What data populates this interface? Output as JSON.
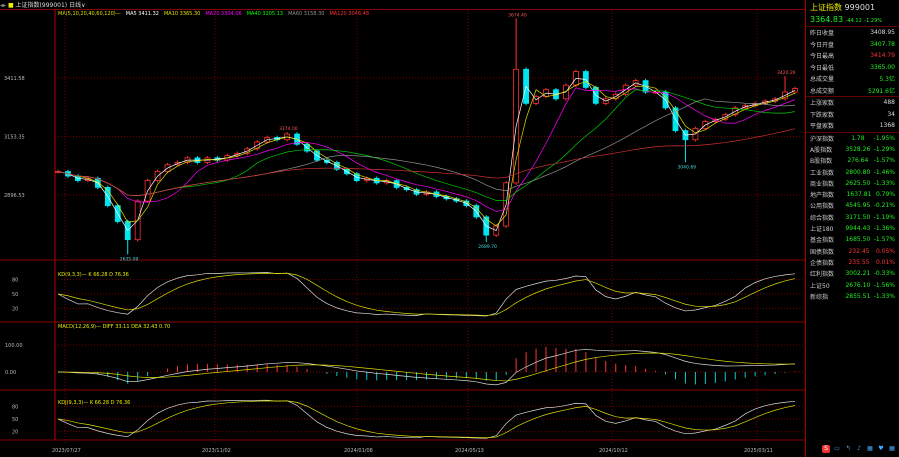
{
  "topbar": {
    "title": "上证指数(999001)",
    "period": "日线"
  },
  "legend": [
    {
      "text": "MA(5,10,20,40,60,120)—",
      "color": "#e0e000"
    },
    {
      "text": "MA5 3411.32",
      "color": "#ffffff"
    },
    {
      "text": "MA10 3365.30",
      "color": "#e0e000"
    },
    {
      "text": "MA20 3304.06",
      "color": "#ff00ff"
    },
    {
      "text": "MA40 3205.13",
      "color": "#00ff00"
    },
    {
      "text": "MA60 3158.30",
      "color": "#909090"
    },
    {
      "text": "MA120 3046.48",
      "color": "#ff3030"
    }
  ],
  "chart_data": [
    {
      "type": "candlestick",
      "pane": "main",
      "yticks": [
        3411.58,
        3153.35,
        2896.53
      ],
      "ylim": [
        2632,
        3711
      ],
      "xticks": [
        "2023/07/27",
        "2023/11/02",
        "2024/01/08",
        "2024/05/13",
        "2024/10/12",
        "2025/03/11"
      ],
      "closes": [
        3000,
        2980,
        2960,
        2970,
        2930,
        2850,
        2780,
        2700,
        2870,
        2960,
        3000,
        3030,
        3040,
        3060,
        3040,
        3060,
        3050,
        3070,
        3080,
        3100,
        3130,
        3150,
        3140,
        3165,
        3120,
        3090,
        3050,
        3040,
        3010,
        2990,
        2960,
        2970,
        2950,
        2960,
        2930,
        2920,
        2900,
        2910,
        2890,
        2880,
        2870,
        2850,
        2800,
        2720,
        2760,
        2950,
        3450,
        3300,
        3330,
        3360,
        3320,
        3380,
        3440,
        3370,
        3300,
        3320,
        3340,
        3380,
        3400,
        3350,
        3350,
        3280,
        3180,
        3140,
        3190,
        3220,
        3230,
        3250,
        3280,
        3290,
        3300,
        3310,
        3320,
        3350,
        3365
      ],
      "annotations": [
        {
          "index": 7,
          "price": 2635.09,
          "text": "2635.09"
        },
        {
          "index": 23,
          "price": 3174.0,
          "text": "3174.00"
        },
        {
          "index": 43,
          "price": 2689.7,
          "text": "2689.70"
        },
        {
          "index": 46,
          "price": 3674.4,
          "text": "3674.40"
        },
        {
          "index": 63,
          "price": 3040.69,
          "text": "3040.69"
        },
        {
          "index": 73,
          "price": 3420.26,
          "text": "3420.26"
        }
      ],
      "ma_periods": [
        5,
        10,
        20,
        40,
        60,
        120
      ],
      "ma_colors": [
        "#ffffff",
        "#e0e000",
        "#ff00ff",
        "#00cc00",
        "#909090",
        "#d03030"
      ],
      "up_color": "#ff3030",
      "down_color": "#00e5ee"
    },
    {
      "type": "line",
      "pane": "indicator1",
      "label": "KD(9,3,3)— K 66.28 D 76.36",
      "yticks": [
        80,
        50,
        20
      ],
      "ylim": [
        0,
        100
      ]
    },
    {
      "type": "bar+line",
      "pane": "indicator2",
      "label": "MACD(12,26,9)— DIFF 33.11 DEA 32.43 0.70",
      "yticks": [
        "100.00",
        "0.00"
      ]
    },
    {
      "type": "line",
      "pane": "indicator3",
      "label": "KDJ(9,3,3)— K 66.28 D 76.36",
      "yticks": [
        80,
        50,
        20
      ],
      "ylim": [
        0,
        100
      ]
    }
  ],
  "quote": {
    "name": "上证指数",
    "code": "999001",
    "price": "3364.83",
    "change": "-44.12",
    "pct": "-1.29%",
    "rows": [
      {
        "l": "昨日收盘",
        "v": "3408.95",
        "c": "wh"
      },
      {
        "l": "今日开盘",
        "v": "3407.78",
        "c": "dn"
      },
      {
        "l": "今日最高",
        "v": "3414.79",
        "c": "up"
      },
      {
        "l": "今日最低",
        "v": "3365.00",
        "c": "dn"
      },
      {
        "l": "总成交量",
        "v": "5.3亿",
        "c": "dn"
      },
      {
        "l": "总成交额",
        "v": "5291.6亿",
        "c": "dn"
      }
    ],
    "breadth": [
      {
        "l": "上涨家数",
        "v": "488"
      },
      {
        "l": "下跌家数",
        "v": "34"
      },
      {
        "l": "平盘家数",
        "v": "1368"
      }
    ],
    "indices": [
      {
        "l": "沪深指数",
        "v": "1.78",
        "p": "-1.95%",
        "c": "dn"
      },
      {
        "l": "A股指数",
        "v": "3528.26",
        "p": "-1.29%",
        "c": "dn"
      },
      {
        "l": "B股指数",
        "v": "276.64",
        "p": "-1.57%",
        "c": "dn"
      },
      {
        "l": "工业指数",
        "v": "2800.80",
        "p": "-1.46%",
        "c": "dn"
      },
      {
        "l": "商业指数",
        "v": "2625.50",
        "p": "-1.33%",
        "c": "dn"
      },
      {
        "l": "地产指数",
        "v": "1637.81",
        "p": "0.79%",
        "c": "dn"
      },
      {
        "l": "公用指数",
        "v": "4545.95",
        "p": "-0.21%",
        "c": "dn"
      },
      {
        "l": "综合指数",
        "v": "3171.50",
        "p": "-1.19%",
        "c": "dn"
      },
      {
        "l": "上证180",
        "v": "9944.43",
        "p": "-1.36%",
        "c": "dn"
      },
      {
        "l": "基金指数",
        "v": "1685.50",
        "p": "-1.57%",
        "c": "dn"
      },
      {
        "l": "国债指数",
        "v": "232.45",
        "p": "0.05%",
        "c": "up"
      },
      {
        "l": "企债指数",
        "v": "235.55",
        "p": "0.01%",
        "c": "up"
      },
      {
        "l": "红利指数",
        "v": "3002.21",
        "p": "-0.33%",
        "c": "dn"
      },
      {
        "l": "上证50",
        "v": "2676.10",
        "p": "-1.56%",
        "c": "dn"
      },
      {
        "l": "新综指",
        "v": "2855.51",
        "p": "-1.33%",
        "c": "dn"
      }
    ]
  },
  "tray": [
    "S",
    "▭",
    "↰",
    "♪",
    "▦",
    "♥",
    "▦",
    "✎"
  ]
}
